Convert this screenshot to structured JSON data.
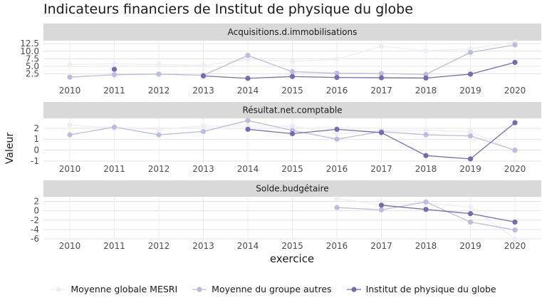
{
  "chart_data": {
    "type": "line",
    "title": "Indicateurs financiers de Institut de physique du globe",
    "xlabel": "exercice",
    "ylabel": "Valeur",
    "x": [
      2010,
      2011,
      2012,
      2013,
      2014,
      2015,
      2016,
      2017,
      2018,
      2019,
      2020
    ],
    "legend": {
      "position": "bottom"
    },
    "series_styles": [
      {
        "name": "Moyenne globale MESRI",
        "color": "#efedf5"
      },
      {
        "name": "Moyenne du groupe autres",
        "color": "#bcbddc"
      },
      {
        "name": "Institut de physique du globe",
        "color": "#756bb1"
      }
    ],
    "panels": [
      {
        "title": "Acquisitions.d.immobilisations",
        "ylim": [
          0.5,
          13.5
        ],
        "yticks": [
          2.5,
          5.0,
          7.5,
          10.0,
          12.5
        ],
        "ytick_labels": [
          "2.5",
          "5.0",
          "7.5",
          "10.0",
          "12.5"
        ],
        "series": [
          {
            "name": "Moyenne globale MESRI",
            "values": [
              5.6,
              5.8,
              5.6,
              5.3,
              7.3,
              6.6,
              7.3,
              11.7,
              10.1,
              10.8,
              13.0
            ]
          },
          {
            "name": "Moyenne du groupe autres",
            "values": [
              1.4,
              2.2,
              2.4,
              2.0,
              8.6,
              3.2,
              2.7,
              2.6,
              2.3,
              9.6,
              12.1
            ]
          },
          {
            "name": "Institut de physique du globe",
            "values": [
              null,
              4.0,
              null,
              1.8,
              1.0,
              1.6,
              1.3,
              1.2,
              1.1,
              2.4,
              6.3
            ]
          }
        ]
      },
      {
        "title": "Résultat.net.comptable",
        "ylim": [
          -1.2,
          2.9
        ],
        "yticks": [
          -1,
          0,
          1,
          2
        ],
        "ytick_labels": [
          "-1",
          "0",
          "1",
          "2"
        ],
        "series": [
          {
            "name": "Moyenne globale MESRI",
            "values": [
              2.3,
              2.0,
              1.9,
              2.2,
              2.2,
              2.2,
              1.5,
              1.8,
              1.8,
              1.7,
              -0.1
            ]
          },
          {
            "name": "Moyenne du groupe autres",
            "values": [
              1.4,
              2.1,
              1.4,
              1.7,
              2.7,
              1.8,
              1.0,
              1.7,
              1.4,
              1.3,
              0.0
            ]
          },
          {
            "name": "Institut de physique du globe",
            "values": [
              null,
              null,
              null,
              null,
              1.9,
              1.5,
              1.9,
              1.6,
              -0.5,
              -0.8,
              2.5
            ]
          }
        ]
      },
      {
        "title": "Solde.budgétaire",
        "ylim": [
          -6.3,
          3.0
        ],
        "yticks": [
          -6,
          -4,
          -2,
          0,
          2
        ],
        "ytick_labels": [
          "-6",
          "-4",
          "-2",
          "0",
          "2"
        ],
        "series": [
          {
            "name": "Moyenne globale MESRI",
            "values": [
              null,
              null,
              null,
              null,
              null,
              null,
              2.6,
              1.3,
              1.7,
              0.8,
              -6.0
            ]
          },
          {
            "name": "Moyenne du groupe autres",
            "values": [
              null,
              null,
              null,
              null,
              null,
              null,
              0.7,
              0.2,
              1.9,
              -2.4,
              -4.1
            ]
          },
          {
            "name": "Institut de physique du globe",
            "values": [
              null,
              null,
              null,
              null,
              null,
              null,
              null,
              1.2,
              0.3,
              -0.6,
              -2.4
            ]
          }
        ]
      }
    ]
  }
}
